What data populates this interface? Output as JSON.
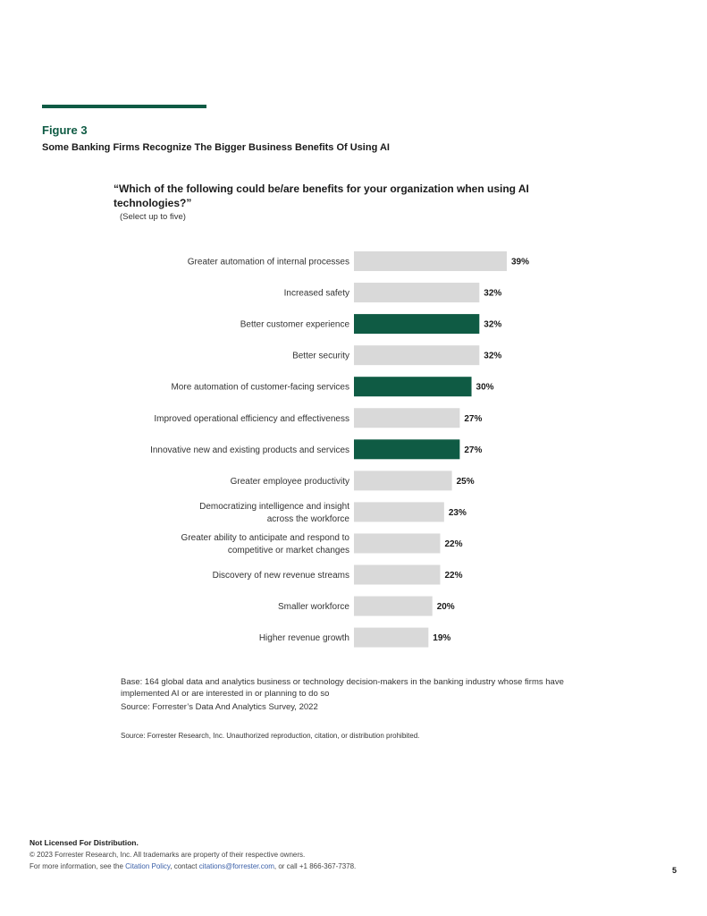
{
  "figure": {
    "label": "Figure 3",
    "title": "Some Banking Firms Recognize The Bigger Business Benefits Of Using AI"
  },
  "chart_data": {
    "type": "bar",
    "orientation": "horizontal",
    "title": "“Which of the following could be/are benefits for your organization when using AI technologies?”",
    "subtitle": "(Select up to five)",
    "categories": [
      [
        "Greater automation of internal processes"
      ],
      [
        "Increased safety"
      ],
      [
        "Better customer experience"
      ],
      [
        "Better security"
      ],
      [
        "More automation of customer-facing services"
      ],
      [
        "Improved operational efficiency and effectiveness"
      ],
      [
        "Innovative new and existing products and services"
      ],
      [
        "Greater employee productivity"
      ],
      [
        "Democratizing intelligence and insight",
        "across the workforce"
      ],
      [
        "Greater ability to anticipate and respond to",
        "competitive or market changes"
      ],
      [
        "Discovery of new revenue streams"
      ],
      [
        "Smaller workforce"
      ],
      [
        "Higher revenue growth"
      ]
    ],
    "values": [
      39,
      32,
      32,
      32,
      30,
      27,
      27,
      25,
      23,
      22,
      22,
      20,
      19
    ],
    "value_labels": [
      "39%",
      "32%",
      "32%",
      "32%",
      "30%",
      "27%",
      "27%",
      "25%",
      "23%",
      "22%",
      "22%",
      "20%",
      "19%"
    ],
    "highlighted": [
      false,
      false,
      true,
      false,
      true,
      false,
      true,
      false,
      false,
      false,
      false,
      false,
      false
    ],
    "xlim": [
      0,
      39
    ],
    "colors": {
      "default": "#d9d9d9",
      "highlight": "#0f5b44"
    }
  },
  "notes": {
    "base": "Base: 164 global data and analytics business or technology decision-makers in the banking industry whose firms have implemented AI or are interested in or planning to do so",
    "source": "Source: Forrester’s Data And Analytics Survey, 2022",
    "source2": "Source: Forrester Research, Inc. Unauthorized reproduction, citation, or distribution prohibited."
  },
  "footer": {
    "not_licensed": "Not Licensed For Distribution.",
    "copyright": "© 2023 Forrester Research, Inc. All trademarks are property of their respective owners.",
    "info_prefix": "For more information, see the ",
    "citation_policy": "Citation Policy",
    "info_mid": ", contact ",
    "email": "citations@forrester.com",
    "info_suffix": ", or call +1 866-367-7378.",
    "page_number": "5"
  }
}
